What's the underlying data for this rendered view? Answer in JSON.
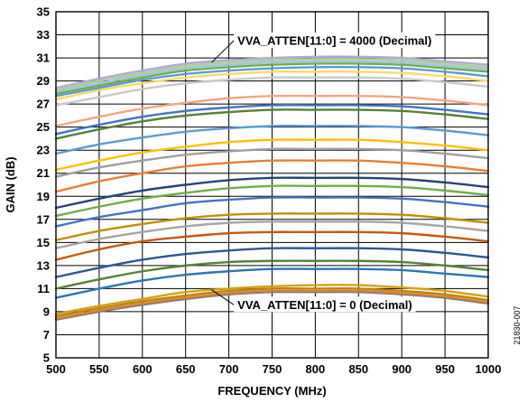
{
  "chart_data": {
    "type": "line",
    "xlabel": "FREQUENCY (MHz)",
    "ylabel": "GAIN (dB)",
    "xlim": [
      500,
      1000
    ],
    "ylim": [
      5,
      35
    ],
    "x_ticks": [
      500,
      550,
      600,
      650,
      700,
      750,
      800,
      850,
      900,
      950,
      1000
    ],
    "y_ticks": [
      5,
      7,
      9,
      11,
      13,
      15,
      17,
      19,
      21,
      23,
      25,
      27,
      29,
      31,
      33,
      35
    ],
    "grid": true,
    "annotations": [
      {
        "text": "VVA_ATTEN[11:0] = 4000 (Decimal)",
        "x": 710,
        "y": 32.5,
        "arrow_to": [
          680,
          30.6
        ]
      },
      {
        "text": "VVA_ATTEN[11:0] = 0 (Decimal)",
        "x": 710,
        "y": 9.6,
        "arrow_to": [
          680,
          10.9
        ]
      }
    ],
    "figure_id": "21830-007",
    "x": [
      500,
      550,
      600,
      650,
      700,
      750,
      800,
      850,
      900,
      950,
      1000
    ],
    "series": [
      {
        "color": "#7a7a7a",
        "values": [
          8.3,
          9.0,
          9.6,
          10.1,
          10.5,
          10.7,
          10.7,
          10.7,
          10.5,
          10.2,
          9.7
        ]
      },
      {
        "color": "#e07b39",
        "values": [
          8.4,
          9.1,
          9.7,
          10.2,
          10.6,
          10.8,
          10.8,
          10.8,
          10.6,
          10.3,
          9.8
        ]
      },
      {
        "color": "#b8860b",
        "values": [
          8.6,
          9.3,
          9.9,
          10.4,
          10.8,
          11.0,
          11.0,
          11.0,
          10.8,
          10.5,
          10.0
        ]
      },
      {
        "color": "#d4a017",
        "values": [
          8.8,
          9.5,
          10.1,
          10.7,
          11.0,
          11.2,
          11.3,
          11.3,
          11.1,
          10.8,
          10.3
        ]
      },
      {
        "color": "#2e75b6",
        "values": [
          10.2,
          11.0,
          11.7,
          12.2,
          12.5,
          12.7,
          12.7,
          12.7,
          12.6,
          12.3,
          12.0
        ]
      },
      {
        "color": "#548235",
        "values": [
          11.0,
          11.8,
          12.5,
          13.0,
          13.3,
          13.4,
          13.4,
          13.4,
          13.3,
          13.0,
          12.6
        ]
      },
      {
        "color": "#2f5597",
        "values": [
          12.0,
          12.8,
          13.5,
          14.0,
          14.3,
          14.5,
          14.5,
          14.5,
          14.4,
          14.1,
          13.7
        ]
      },
      {
        "color": "#c55a11",
        "values": [
          13.5,
          14.4,
          15.1,
          15.5,
          15.8,
          15.9,
          15.9,
          15.9,
          15.8,
          15.5,
          15.1
        ]
      },
      {
        "color": "#a5a5a5",
        "values": [
          14.5,
          15.3,
          15.9,
          16.4,
          16.7,
          16.8,
          16.8,
          16.8,
          16.7,
          16.4,
          16.0
        ]
      },
      {
        "color": "#bf9000",
        "values": [
          15.2,
          16.0,
          16.6,
          17.1,
          17.4,
          17.5,
          17.5,
          17.5,
          17.4,
          17.1,
          16.7
        ]
      },
      {
        "color": "#4472c4",
        "values": [
          16.4,
          17.2,
          17.8,
          18.4,
          18.7,
          18.9,
          18.9,
          18.9,
          18.8,
          18.5,
          18.1
        ]
      },
      {
        "color": "#70ad47",
        "values": [
          17.3,
          18.1,
          18.8,
          19.3,
          19.7,
          19.9,
          19.9,
          19.9,
          19.8,
          19.5,
          19.1
        ]
      },
      {
        "color": "#264478",
        "values": [
          18.0,
          18.8,
          19.5,
          20.0,
          20.4,
          20.6,
          20.6,
          20.6,
          20.5,
          20.2,
          19.8
        ]
      },
      {
        "color": "#ed7d31",
        "values": [
          19.4,
          20.3,
          21.0,
          21.6,
          21.9,
          22.1,
          22.1,
          22.1,
          21.9,
          21.6,
          21.2
        ]
      },
      {
        "color": "#9e9e9e",
        "values": [
          20.7,
          21.5,
          22.1,
          22.6,
          22.9,
          23.1,
          23.1,
          23.1,
          23.0,
          22.7,
          22.3
        ]
      },
      {
        "color": "#ffc000",
        "values": [
          21.3,
          22.1,
          22.8,
          23.3,
          23.7,
          23.9,
          23.9,
          23.9,
          23.7,
          23.4,
          23.0
        ]
      },
      {
        "color": "#5b9bd5",
        "values": [
          22.7,
          23.5,
          24.1,
          24.6,
          24.9,
          25.1,
          25.1,
          25.1,
          25.0,
          24.7,
          24.3
        ]
      },
      {
        "color": "#548235",
        "values": [
          24.0,
          24.8,
          25.5,
          26.0,
          26.3,
          26.5,
          26.5,
          26.5,
          26.4,
          26.1,
          25.7
        ]
      },
      {
        "color": "#4472c4",
        "values": [
          24.4,
          25.2,
          25.9,
          26.4,
          26.7,
          26.9,
          26.9,
          26.9,
          26.8,
          26.5,
          26.1
        ]
      },
      {
        "color": "#f4a582",
        "values": [
          25.1,
          25.9,
          26.6,
          27.1,
          27.5,
          27.7,
          27.7,
          27.7,
          27.6,
          27.3,
          26.9
        ]
      },
      {
        "color": "#c9c9c9",
        "values": [
          26.9,
          27.6,
          28.3,
          28.8,
          29.1,
          29.3,
          29.3,
          29.3,
          29.2,
          28.9,
          28.5
        ]
      },
      {
        "color": "#ffd966",
        "values": [
          27.4,
          28.2,
          28.8,
          29.3,
          29.6,
          29.8,
          29.8,
          29.8,
          29.7,
          29.4,
          29.0
        ]
      },
      {
        "color": "#5b9bd5",
        "values": [
          27.7,
          28.4,
          29.1,
          29.6,
          29.9,
          30.1,
          30.2,
          30.2,
          30.1,
          29.8,
          29.4
        ]
      },
      {
        "color": "#70ad47",
        "values": [
          27.9,
          28.6,
          29.3,
          29.9,
          30.2,
          30.4,
          30.5,
          30.5,
          30.4,
          30.1,
          29.8
        ]
      },
      {
        "color": "#9dc3e6",
        "values": [
          28.1,
          28.8,
          29.5,
          30.1,
          30.4,
          30.6,
          30.7,
          30.7,
          30.6,
          30.3,
          30.0
        ]
      },
      {
        "color": "#a9d18e",
        "values": [
          28.2,
          29.0,
          29.7,
          30.3,
          30.6,
          30.8,
          30.9,
          30.9,
          30.8,
          30.5,
          30.2
        ]
      },
      {
        "color": "#b4a7d6",
        "values": [
          28.4,
          29.2,
          29.9,
          30.5,
          30.8,
          31.0,
          31.1,
          31.1,
          31.0,
          30.7,
          30.4
        ]
      }
    ]
  }
}
